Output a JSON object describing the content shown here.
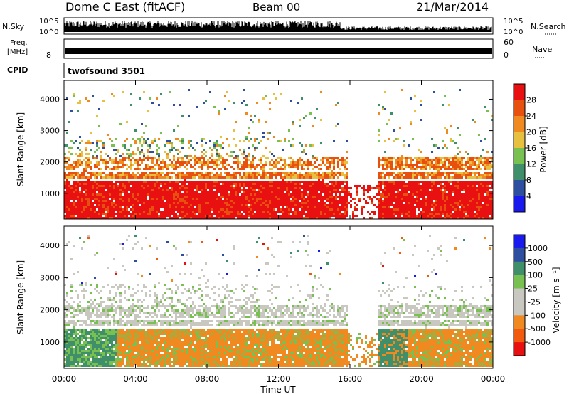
{
  "header": {
    "station": "Dome C East (fitACF)",
    "beam": "Beam 00",
    "date": "21/Mar/2014"
  },
  "panels": {
    "nsky": {
      "label": "N.Sky",
      "right_label": "N.Search",
      "tick_top": "10^5",
      "tick_bottom": "10^0",
      "right_tick_top": "10^5",
      "right_tick_bottom": "10^0"
    },
    "freq": {
      "label_line1": "Freq.",
      "label_line2": "[MHz]",
      "tick_left": "8",
      "right_label": "Nave",
      "right_tick_top": "60",
      "right_tick_bottom": "0"
    },
    "cpid": {
      "label": "CPID",
      "value": "twofsound 3501"
    }
  },
  "x_axis": {
    "label": "Time UT",
    "ticks": [
      "00:00",
      "04:00",
      "08:00",
      "12:00",
      "16:00",
      "20:00",
      "00:00"
    ]
  },
  "colors": {
    "power": [
      "#1a1aee",
      "#2e4fa0",
      "#3f8f6a",
      "#78c050",
      "#e8c040",
      "#f08a20",
      "#e85010",
      "#e81010"
    ],
    "velocity": [
      "#e81010",
      "#f25a10",
      "#f08a20",
      "#c8c8c0",
      "#c8c8c0",
      "#78c050",
      "#3f8f6a",
      "#2e4fa0",
      "#1a1aee"
    ]
  },
  "chart_data": [
    {
      "type": "heatmap",
      "name_hint": "power-panel",
      "ylabel": "Slant Range [km]",
      "xlabel": "",
      "x_range_hours": [
        0,
        24
      ],
      "ylim": [
        180,
        4600
      ],
      "yticks": [
        1000,
        2000,
        3000,
        4000
      ],
      "colorbar": {
        "label": "Power [dB]",
        "ticks": [
          "4",
          "8",
          "12",
          "16",
          "20",
          "24",
          "28"
        ],
        "range": [
          0,
          32
        ]
      }
    },
    {
      "type": "heatmap",
      "name_hint": "velocity-panel",
      "ylabel": "Slant Range [km]",
      "xlabel": "Time UT",
      "x_range_hours": [
        0,
        24
      ],
      "ylim": [
        180,
        4600
      ],
      "yticks": [
        1000,
        2000,
        3000,
        4000
      ],
      "colorbar": {
        "label": "Velocity [m s⁻¹]",
        "ticks": [
          "1000",
          "500",
          "100",
          "25",
          "-25",
          "-100",
          "-500",
          "-1000"
        ]
      }
    }
  ]
}
